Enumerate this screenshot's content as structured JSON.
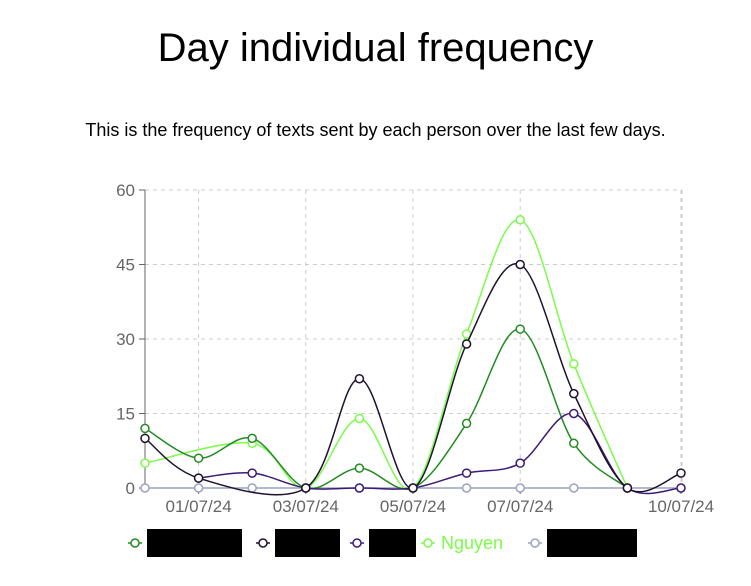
{
  "header": {
    "title": "Day individual frequency",
    "subtitle": "This is the frequency of texts sent by each person over the last few days."
  },
  "chart_data": {
    "type": "line",
    "title": "Day individual frequency",
    "subtitle": "This is the frequency of texts sent by each person over the last few days.",
    "x": [
      "30/06/24",
      "01/07/24",
      "02/07/24",
      "03/07/24",
      "04/07/24",
      "05/07/24",
      "06/07/24",
      "07/07/24",
      "08/07/24",
      "09/07/24",
      "10/07/24"
    ],
    "x_tick_labels": [
      "01/07/24",
      "03/07/24",
      "05/07/24",
      "07/07/24",
      "10/07/24"
    ],
    "y_ticks": [
      0,
      15,
      30,
      45,
      60
    ],
    "ylim": [
      0,
      60
    ],
    "grid": true,
    "legend_position": "bottom",
    "series": [
      {
        "label": "",
        "redacted": true,
        "color": "#228B22",
        "values": [
          12,
          6,
          10,
          0,
          4,
          0,
          13,
          32,
          9,
          0,
          null
        ]
      },
      {
        "label": "",
        "redacted": true,
        "color": "#1E1230",
        "values": [
          10,
          2,
          null,
          0,
          22,
          0,
          29,
          45,
          19,
          0,
          3
        ]
      },
      {
        "label": "",
        "redacted": true,
        "color": "#3D1A78",
        "values": [
          null,
          2,
          3,
          0,
          0,
          0,
          3,
          5,
          15,
          0,
          0
        ]
      },
      {
        "label": "Nguyen",
        "redacted": false,
        "color": "#7CFC4A",
        "values": [
          5,
          null,
          9,
          0,
          14,
          0,
          31,
          54,
          25,
          0,
          null
        ]
      },
      {
        "label": "",
        "redacted": true,
        "color": "#9AA3BF",
        "values": [
          0,
          0,
          0,
          0,
          0,
          0,
          0,
          0,
          0,
          0,
          0
        ]
      }
    ]
  }
}
